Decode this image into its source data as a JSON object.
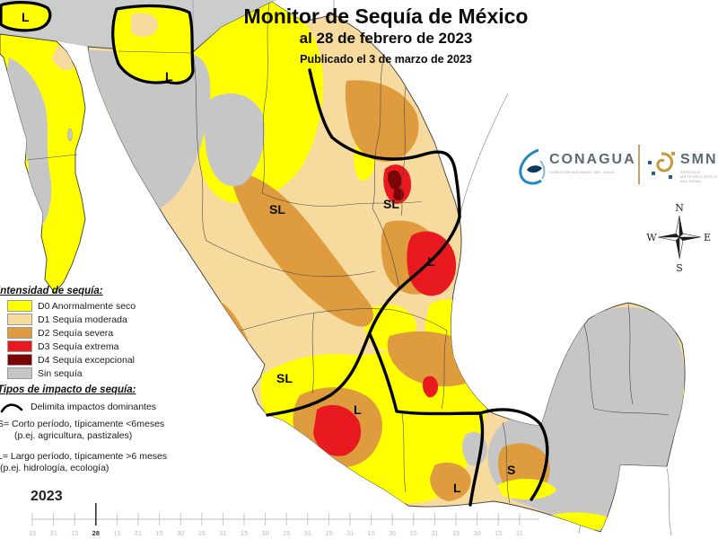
{
  "title": {
    "main": "Monitor de Sequía de México",
    "date_line": "al 28 de febrero de 2023",
    "published_line": "Publicado el 3 de marzo de 2023"
  },
  "logos": {
    "conagua": {
      "name": "CONAGUA",
      "subtitle": "COMISIÓN NACIONAL DEL AGUA"
    },
    "smn": {
      "name": "SMN",
      "subtitle": "SERVICIO METEOROLÓGICO NACIONAL"
    }
  },
  "compass": {
    "n": "N",
    "e": "E",
    "s": "S",
    "w": "W"
  },
  "legend": {
    "intensity_title": "Intensidad de sequía:",
    "items": [
      {
        "label": "D0 Anormalmente seco",
        "color": "#FFFF00"
      },
      {
        "label": "D1 Sequía moderada",
        "color": "#F7DA9E"
      },
      {
        "label": "D2 Sequía severa",
        "color": "#DE9C3E"
      },
      {
        "label": "D3 Sequía extrema",
        "color": "#E8191F"
      },
      {
        "label": "D4 Sequía excepcional",
        "color": "#7A0407"
      },
      {
        "label": "Sin sequía",
        "color": "#C6C6C6"
      }
    ],
    "impact_title": "Tipos de impacto de sequía:",
    "impact_delimit": "Delimita impactos dominantes",
    "impact_short": "S= Corto período, típicamente <6meses",
    "impact_short_ex": "(p.ej. agricultura, pastizales)",
    "impact_long": "L= Largo período, típicamente >6 meses",
    "impact_long_ex": "(p.ej. hidrología, ecología)"
  },
  "map": {
    "labels": [
      {
        "text": "L"
      },
      {
        "text": "L"
      },
      {
        "text": "SL"
      },
      {
        "text": "SL"
      },
      {
        "text": "L"
      },
      {
        "text": "SL"
      },
      {
        "text": "L"
      },
      {
        "text": "L"
      },
      {
        "text": "S"
      }
    ]
  },
  "timeline": {
    "year": "2023",
    "highlight_index": 3,
    "highlight_label": "28",
    "tick_labels": [
      "15",
      "31",
      "15",
      "28",
      "15",
      "31",
      "15",
      "30",
      "15",
      "31",
      "15",
      "30",
      "15",
      "31",
      "15",
      "31",
      "15",
      "30",
      "15",
      "31",
      "15",
      "30",
      "15",
      "31"
    ]
  },
  "colors": {
    "d0": "#FFFF00",
    "d1": "#F7DA9E",
    "d2": "#DE9C3E",
    "d3": "#E8191F",
    "d4": "#7A0407",
    "no_drought": "#C6C6C6",
    "us_land": "#CBCDCC",
    "impact_line": "#000000"
  }
}
